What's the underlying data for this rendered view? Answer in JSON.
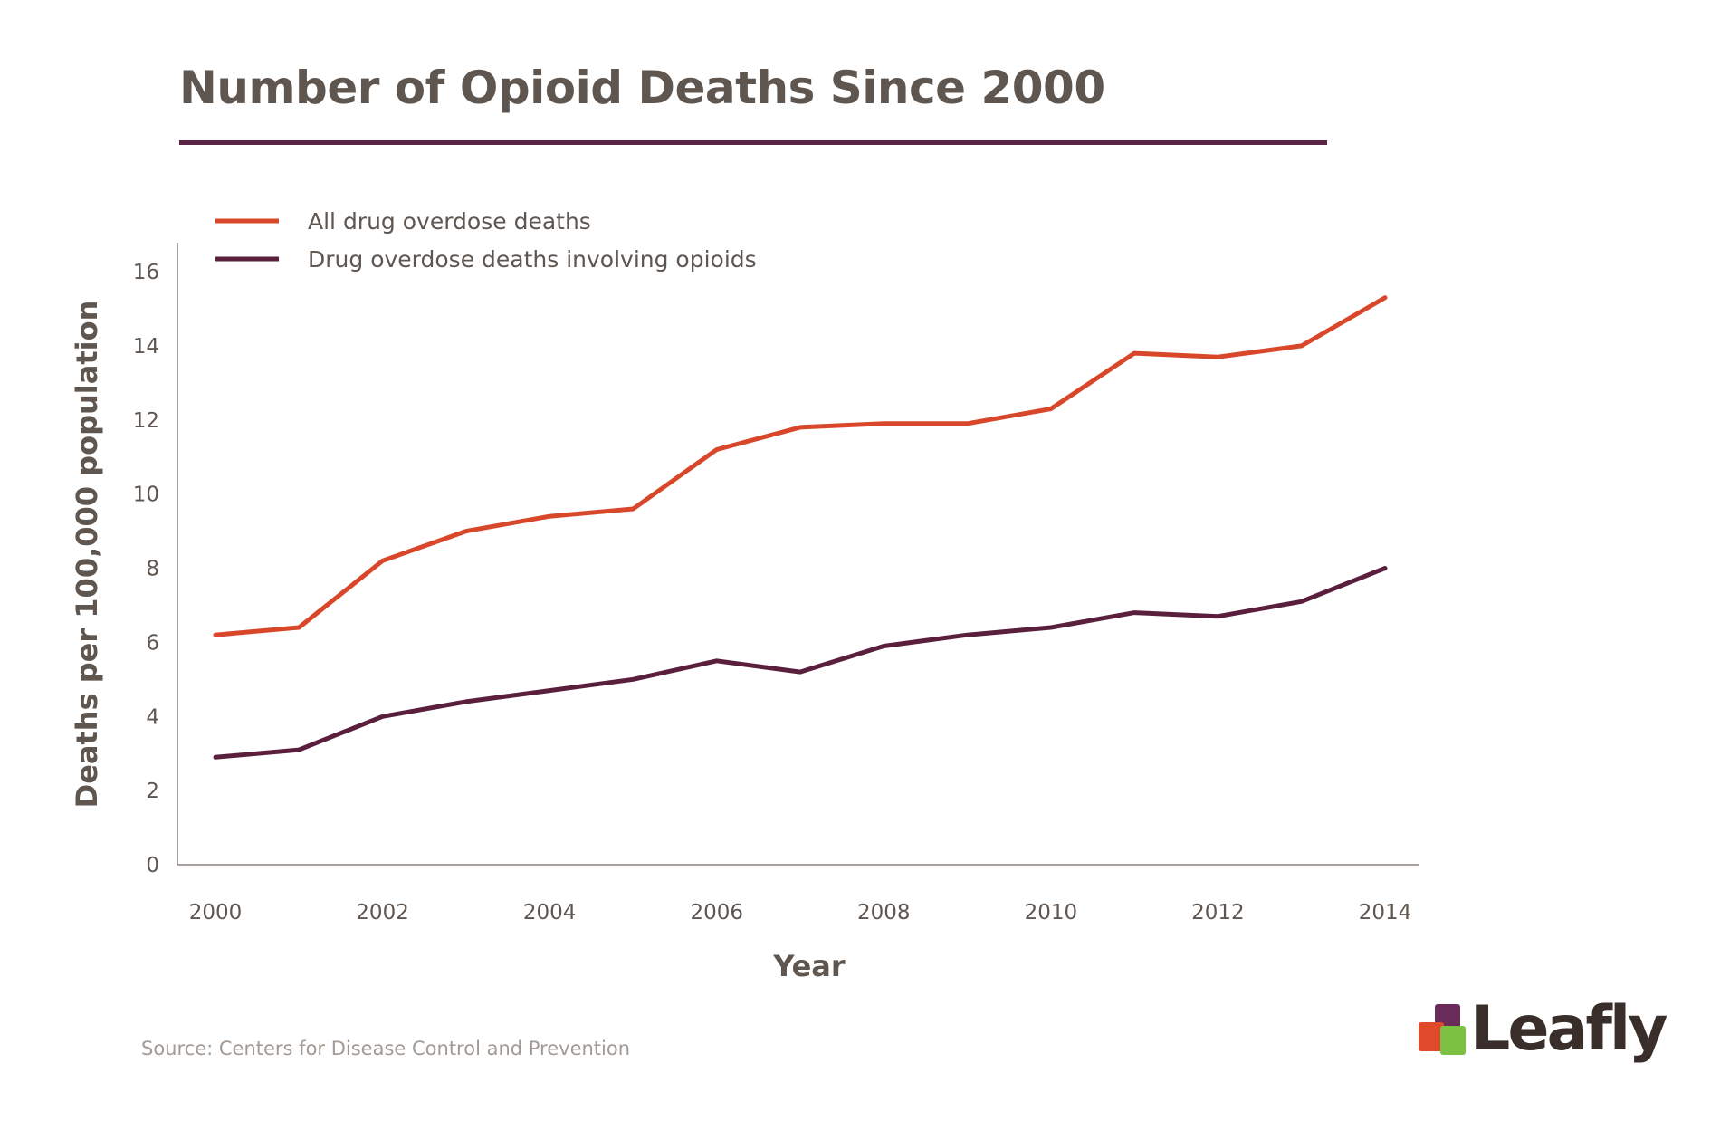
{
  "title": "Number of Opioid Deaths Since 2000",
  "source": "Source: Centers for Disease Control and Prevention",
  "logo": {
    "text": "Leafly",
    "colors": [
      "#6a2a5a",
      "#e04a2a",
      "#7dc142"
    ]
  },
  "colors": {
    "title_rule": "#5b2444",
    "axis": "#8a817b"
  },
  "chart_data": {
    "type": "line",
    "xlabel": "Year",
    "ylabel": "Deaths per 100,000 population",
    "xlim": [
      2000,
      2014
    ],
    "ylim": [
      0,
      16
    ],
    "x_ticks": [
      2000,
      2002,
      2004,
      2006,
      2008,
      2010,
      2012,
      2014
    ],
    "y_ticks": [
      0,
      2,
      4,
      6,
      8,
      10,
      12,
      14,
      16
    ],
    "grid": false,
    "legend_position": "top-left",
    "x": [
      2000,
      2001,
      2002,
      2003,
      2004,
      2005,
      2006,
      2007,
      2008,
      2009,
      2010,
      2011,
      2012,
      2013,
      2014
    ],
    "series": [
      {
        "name": "All drug overdose deaths",
        "color": "#d9472b",
        "values": [
          6.2,
          6.4,
          8.2,
          9.0,
          9.4,
          9.6,
          11.2,
          11.8,
          11.9,
          11.9,
          12.3,
          13.8,
          13.7,
          14.0,
          15.3
        ]
      },
      {
        "name": "Drug overdose deaths involving opioids",
        "color": "#5b1f3e",
        "values": [
          2.9,
          3.1,
          4.0,
          4.4,
          4.7,
          5.0,
          5.5,
          5.2,
          5.9,
          6.2,
          6.4,
          6.8,
          6.7,
          7.1,
          8.0
        ]
      }
    ]
  }
}
